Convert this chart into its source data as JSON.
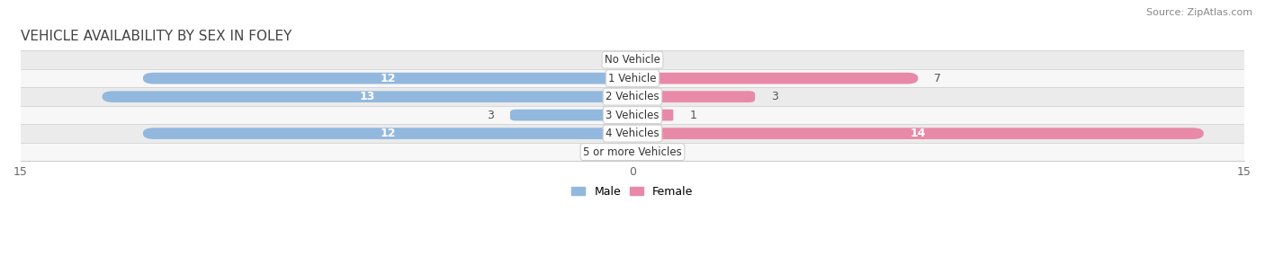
{
  "title": "VEHICLE AVAILABILITY BY SEX IN FOLEY",
  "source": "Source: ZipAtlas.com",
  "categories": [
    "No Vehicle",
    "1 Vehicle",
    "2 Vehicles",
    "3 Vehicles",
    "4 Vehicles",
    "5 or more Vehicles"
  ],
  "male_values": [
    0,
    12,
    13,
    3,
    12,
    0
  ],
  "female_values": [
    0,
    7,
    3,
    1,
    14,
    0
  ],
  "male_color": "#92b8de",
  "female_color": "#e889a8",
  "xlim": [
    -15,
    15
  ],
  "bar_height": 0.62,
  "background_color": "#ffffff",
  "row_colors": [
    "#ebebeb",
    "#f7f7f7"
  ],
  "label_color_inside": "#ffffff",
  "label_color_outside": "#555555",
  "title_fontsize": 11,
  "source_fontsize": 8,
  "tick_fontsize": 9,
  "category_fontsize": 8.5
}
